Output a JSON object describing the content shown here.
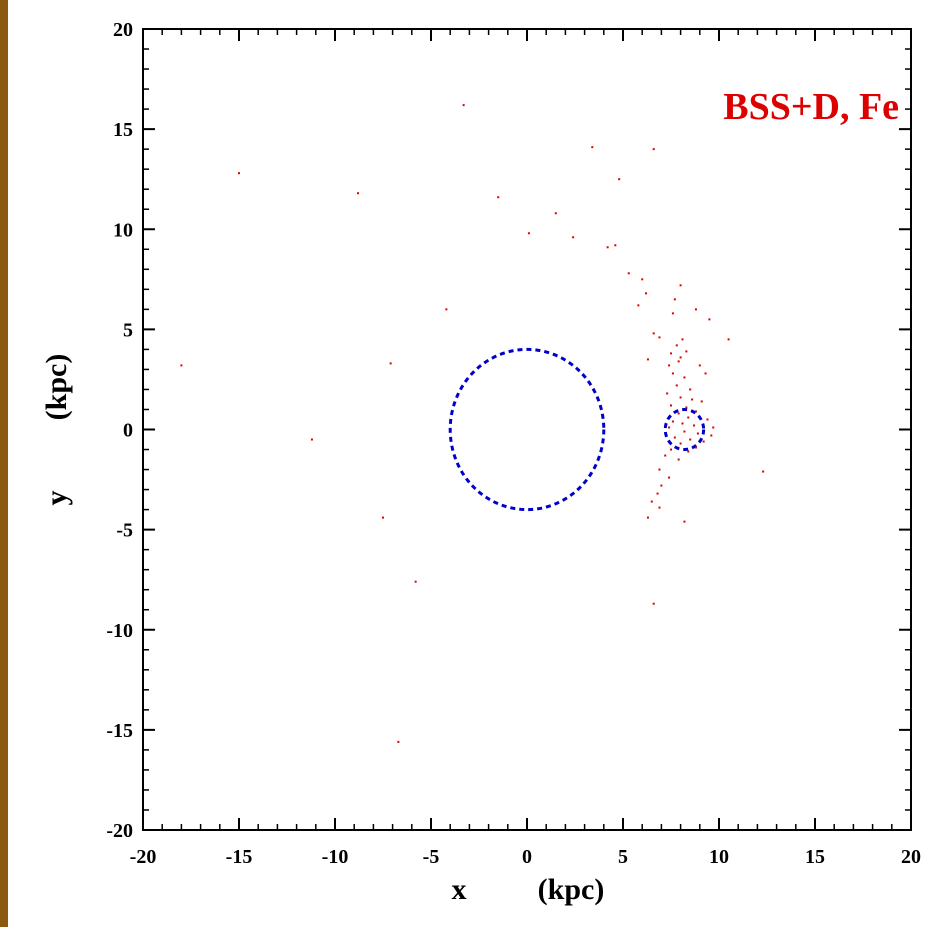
{
  "chart_data": {
    "type": "scatter",
    "annotation": "BSS+D, Fe",
    "xlabel": {
      "var": "x",
      "unit": "(kpc)"
    },
    "ylabel": {
      "var": "y",
      "unit": "(kpc)"
    },
    "xlim": [
      -20,
      20
    ],
    "ylim": [
      -20,
      20
    ],
    "xticks": [
      -20,
      -15,
      -10,
      -5,
      0,
      5,
      10,
      15,
      20
    ],
    "yticks": [
      -20,
      -15,
      -10,
      -5,
      0,
      5,
      10,
      15,
      20
    ],
    "grid": false,
    "colors": {
      "points": "#dd0000",
      "circles": "#0000cc",
      "annotation": "#dd0000"
    },
    "circles": [
      {
        "cx": 0,
        "cy": 0,
        "r": 4.0
      },
      {
        "cx": 8.2,
        "cy": 0,
        "r": 1.0
      }
    ],
    "points": [
      [
        -3.3,
        16.2
      ],
      [
        -15.0,
        12.8
      ],
      [
        -8.8,
        11.8
      ],
      [
        -1.5,
        11.6
      ],
      [
        3.4,
        14.1
      ],
      [
        6.6,
        14.0
      ],
      [
        4.8,
        12.5
      ],
      [
        1.5,
        10.8
      ],
      [
        0.1,
        9.8
      ],
      [
        2.4,
        9.6
      ],
      [
        4.2,
        9.1
      ],
      [
        4.6,
        9.2
      ],
      [
        5.3,
        7.8
      ],
      [
        6.0,
        7.5
      ],
      [
        6.2,
        6.8
      ],
      [
        5.8,
        6.2
      ],
      [
        8.0,
        7.2
      ],
      [
        7.7,
        6.5
      ],
      [
        8.8,
        6.0
      ],
      [
        9.5,
        5.5
      ],
      [
        10.5,
        4.5
      ],
      [
        -4.2,
        6.0
      ],
      [
        6.6,
        4.8
      ],
      [
        6.9,
        4.6
      ],
      [
        7.6,
        5.8
      ],
      [
        7.8,
        4.2
      ],
      [
        8.1,
        4.5
      ],
      [
        7.5,
        3.8
      ],
      [
        8.0,
        3.6
      ],
      [
        8.3,
        3.9
      ],
      [
        7.4,
        3.2
      ],
      [
        7.9,
        3.4
      ],
      [
        9.0,
        3.2
      ],
      [
        9.3,
        2.8
      ],
      [
        7.6,
        2.8
      ],
      [
        8.2,
        2.6
      ],
      [
        7.8,
        2.2
      ],
      [
        8.5,
        2.0
      ],
      [
        7.3,
        1.8
      ],
      [
        8.0,
        1.6
      ],
      [
        8.6,
        1.5
      ],
      [
        7.5,
        1.2
      ],
      [
        8.3,
        1.1
      ],
      [
        8.8,
        0.9
      ],
      [
        7.9,
        0.8
      ],
      [
        8.4,
        0.6
      ],
      [
        7.6,
        0.4
      ],
      [
        8.1,
        0.3
      ],
      [
        8.7,
        0.2
      ],
      [
        7.4,
        0.1
      ],
      [
        8.2,
        -0.1
      ],
      [
        8.9,
        -0.2
      ],
      [
        7.7,
        -0.4
      ],
      [
        8.5,
        -0.5
      ],
      [
        8.0,
        -0.7
      ],
      [
        9.2,
        -0.6
      ],
      [
        7.5,
        -1.0
      ],
      [
        8.4,
        -1.1
      ],
      [
        8.8,
        -0.9
      ],
      [
        7.2,
        -1.3
      ],
      [
        7.9,
        -1.5
      ],
      [
        6.9,
        -2.0
      ],
      [
        7.4,
        -2.4
      ],
      [
        7.0,
        -2.8
      ],
      [
        6.8,
        -3.2
      ],
      [
        6.5,
        -3.6
      ],
      [
        6.9,
        -3.9
      ],
      [
        6.3,
        -4.4
      ],
      [
        8.2,
        -4.6
      ],
      [
        9.6,
        -0.3
      ],
      [
        9.4,
        0.5
      ],
      [
        -7.1,
        3.3
      ],
      [
        -18.0,
        3.2
      ],
      [
        -11.2,
        -0.5
      ],
      [
        -7.5,
        -4.4
      ],
      [
        -5.8,
        -7.6
      ],
      [
        -6.7,
        -15.6
      ],
      [
        6.6,
        -8.7
      ],
      [
        12.3,
        -2.1
      ],
      [
        9.7,
        0.1
      ],
      [
        6.3,
        3.5
      ],
      [
        9.1,
        1.4
      ]
    ]
  }
}
